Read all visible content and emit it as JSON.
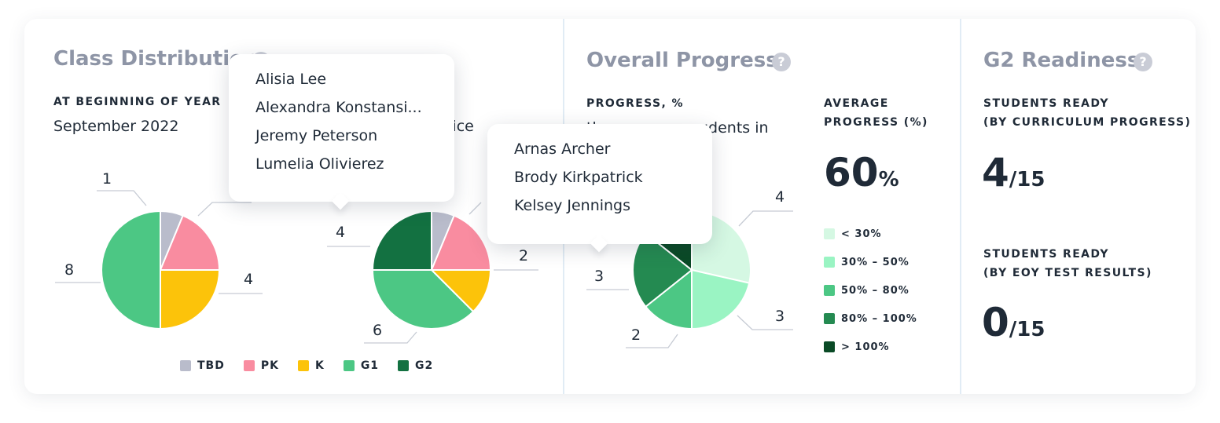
{
  "colors": {
    "TBD": "#b9bccb",
    "PK": "#f98ca0",
    "K": "#fcc30a",
    "G1": "#4cc784",
    "G2": "#137141",
    "p_lt30": "#d5f8e3",
    "p_30_50": "#9af4c3",
    "p_50_80": "#4cc784",
    "p_80_100": "#248a51",
    "p_gt100": "#0a4a26"
  },
  "class_distribution": {
    "title": "Class Distribution",
    "left": {
      "caption": "AT BEGINNING OF YEAR",
      "subtitle": "September 2022",
      "slices": [
        {
          "key": "TBD",
          "value": 1,
          "label": "1"
        },
        {
          "key": "PK",
          "value": 3,
          "label": ""
        },
        {
          "key": "K",
          "value": 4,
          "label": "4"
        },
        {
          "key": "G1",
          "value": 8,
          "label": "8"
        }
      ]
    },
    "right": {
      "subtitle_fragment": "tice",
      "slices": [
        {
          "key": "TBD",
          "value": 1,
          "label": ""
        },
        {
          "key": "PK",
          "value": 3,
          "label": ""
        },
        {
          "key": "K",
          "value": 2,
          "label": "2"
        },
        {
          "key": "G1",
          "value": 6,
          "label": "6"
        },
        {
          "key": "G2",
          "value": 4,
          "label": "4"
        }
      ]
    },
    "legend": [
      {
        "key": "TBD",
        "label": "TBD"
      },
      {
        "key": "PK",
        "label": "PK"
      },
      {
        "key": "K",
        "label": "K"
      },
      {
        "key": "G1",
        "label": "G1"
      },
      {
        "key": "G2",
        "label": "G2"
      }
    ],
    "tooltip": {
      "names": [
        "Alisia Lee",
        "Alexandra Konstansi...",
        "Jeremy Peterson",
        "Lumelia Olivierez"
      ]
    }
  },
  "overall_progress": {
    "title": "Overall Progress",
    "caption": "PROGRESS, %",
    "subtitle_fragment_a": "th",
    "subtitle_fragment_b": "udents in",
    "average_caption_1": "AVERAGE",
    "average_caption_2": "PROGRESS (%)",
    "average_value": "60",
    "average_unit": "%",
    "slices": [
      {
        "key": "p_lt30",
        "value": 4,
        "label": "4"
      },
      {
        "key": "p_30_50",
        "value": 3,
        "label": "3"
      },
      {
        "key": "p_50_80",
        "value": 2,
        "label": "2"
      },
      {
        "key": "p_80_100",
        "value": 3,
        "label": "3"
      },
      {
        "key": "p_gt100",
        "value": 2,
        "label": ""
      }
    ],
    "legend": [
      {
        "key": "p_lt30",
        "label": "< 30%"
      },
      {
        "key": "p_30_50",
        "label": "30% – 50%"
      },
      {
        "key": "p_50_80",
        "label": "50% – 80%"
      },
      {
        "key": "p_80_100",
        "label": "80% – 100%"
      },
      {
        "key": "p_gt100",
        "label": "> 100%"
      }
    ],
    "tooltip": {
      "names": [
        "Arnas Archer",
        "Brody Kirkpatrick",
        "Kelsey Jennings"
      ]
    }
  },
  "g2_readiness": {
    "title": "G2 Readiness",
    "curriculum_caption_1": "STUDENTS READY",
    "curriculum_caption_2": "(BY CURRICULUM PROGRESS)",
    "curriculum_value": "4",
    "curriculum_total": "/15",
    "eoy_caption_1": "STUDENTS READY",
    "eoy_caption_2": "(BY EOY TEST RESULTS)",
    "eoy_value": "0",
    "eoy_total": "/15"
  },
  "help_icon_glyph": "?"
}
